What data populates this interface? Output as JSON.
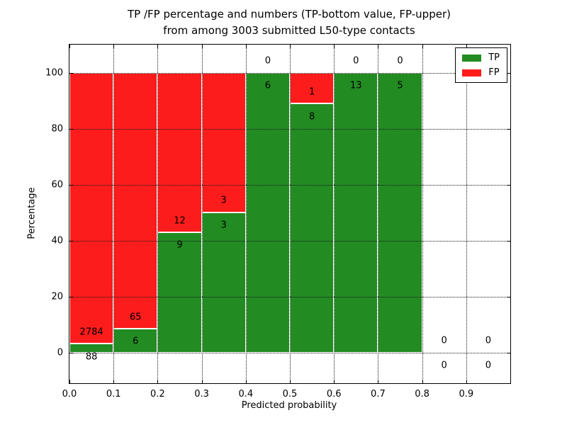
{
  "chart_data": {
    "type": "bar",
    "stacked": true,
    "title_line1": "TP /FP percentage and numbers (TP-bottom value, FP-upper)",
    "title_line2": "from among 3003 submitted L50-type contacts",
    "xlabel": "Predicted probability",
    "ylabel": "Percentage",
    "xlim": [
      0.0,
      1.0
    ],
    "ylim": [
      -11,
      110
    ],
    "x_ticks": [
      "0.0",
      "0.1",
      "0.2",
      "0.3",
      "0.4",
      "0.5",
      "0.6",
      "0.7",
      "0.8",
      "0.9"
    ],
    "y_ticks": [
      "0",
      "20",
      "40",
      "60",
      "80",
      "100"
    ],
    "grid_style": "dotted",
    "legend_position": "upper right",
    "colors": {
      "tp": "#228b22",
      "fp": "#fc1c1c"
    },
    "legend": [
      {
        "label": "TP",
        "series": "tp"
      },
      {
        "label": "FP",
        "series": "fp"
      }
    ],
    "total_contacts": 3003,
    "categories": [
      "0.0-0.1",
      "0.1-0.2",
      "0.2-0.3",
      "0.3-0.4",
      "0.4-0.5",
      "0.5-0.6",
      "0.6-0.7",
      "0.7-0.8",
      "0.8-0.9",
      "0.9-1.0"
    ],
    "series": [
      {
        "name": "TP",
        "values": [
          88,
          6,
          9,
          3,
          6,
          8,
          13,
          5,
          0,
          0
        ]
      },
      {
        "name": "FP",
        "values": [
          2784,
          65,
          12,
          3,
          0,
          1,
          0,
          0,
          0,
          0
        ]
      }
    ],
    "bins": [
      {
        "range": [
          0.0,
          0.1
        ],
        "tp": 88,
        "fp": 2784
      },
      {
        "range": [
          0.1,
          0.2
        ],
        "tp": 6,
        "fp": 65
      },
      {
        "range": [
          0.2,
          0.3
        ],
        "tp": 9,
        "fp": 12
      },
      {
        "range": [
          0.3,
          0.4
        ],
        "tp": 3,
        "fp": 3
      },
      {
        "range": [
          0.4,
          0.5
        ],
        "tp": 6,
        "fp": 0
      },
      {
        "range": [
          0.5,
          0.6
        ],
        "tp": 8,
        "fp": 1
      },
      {
        "range": [
          0.6,
          0.7
        ],
        "tp": 13,
        "fp": 0
      },
      {
        "range": [
          0.7,
          0.8
        ],
        "tp": 5,
        "fp": 0
      },
      {
        "range": [
          0.8,
          0.9
        ],
        "tp": 0,
        "fp": 0
      },
      {
        "range": [
          0.9,
          1.0
        ],
        "tp": 0,
        "fp": 0
      }
    ]
  }
}
